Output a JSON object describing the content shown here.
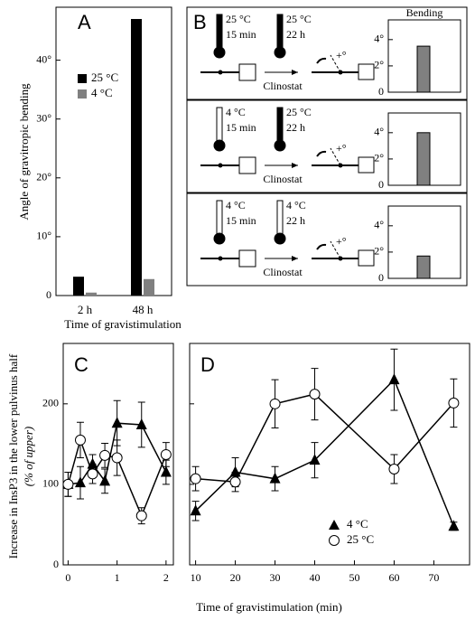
{
  "chart_data": [
    {
      "type": "bar",
      "label": "A",
      "ylabel": "Angle of gravitropic bending",
      "xlabel": "Time of gravistimulation",
      "categories": [
        "2 h",
        "48 h"
      ],
      "series": [
        {
          "name": "25 °C",
          "color": "#000000",
          "values": [
            3.2,
            47
          ]
        },
        {
          "name": "4 °C",
          "color": "#808080",
          "values": [
            0.5,
            2.8
          ]
        }
      ],
      "ylim": [
        0,
        49
      ],
      "yticks": [
        0,
        {
          "value": 10,
          "label": "10°"
        },
        {
          "value": 20,
          "label": "20°"
        },
        {
          "value": 30,
          "label": "30°"
        },
        {
          "value": 40,
          "label": "40°"
        }
      ]
    },
    {
      "type": "bar",
      "label": "B",
      "title": "Bending",
      "values": [
        3.5
      ],
      "color": "#808080",
      "annotations": [
        "25 °C",
        "15 min",
        "25 °C",
        "22 h",
        "Clinostat",
        "+°"
      ],
      "ylim": [
        0,
        5.5
      ],
      "yticks": [
        0,
        {
          "value": 2,
          "label": "2°"
        },
        {
          "value": 4,
          "label": "4°"
        }
      ]
    },
    {
      "type": "bar",
      "values": [
        4.0
      ],
      "color": "#808080",
      "annotations": [
        "4 °C",
        "15 min",
        "25 °C",
        "22 h",
        "Clinostat",
        "+°"
      ],
      "ylim": [
        0,
        5.5
      ],
      "yticks": [
        0,
        {
          "value": 2,
          "label": "2°"
        },
        {
          "value": 4,
          "label": "4°"
        }
      ]
    },
    {
      "type": "bar",
      "values": [
        1.7
      ],
      "color": "#808080",
      "annotations": [
        "4 °C",
        "15 min",
        "4 °C",
        "22 h",
        "Clinostat",
        "+°"
      ],
      "ylim": [
        0,
        5.5
      ],
      "yticks": [
        0,
        {
          "value": 2,
          "label": "2°"
        },
        {
          "value": 4,
          "label": "4°"
        }
      ]
    },
    {
      "type": "line",
      "label": "C",
      "ylabel": "Increase in InsP3 in the lower pulvinus half",
      "ylabel2": "(% of upper)",
      "x": [
        0,
        0.25,
        0.5,
        0.75,
        1,
        1.5,
        2
      ],
      "series": [
        {
          "marker": "triangle",
          "color": "#000000",
          "values": [
            100,
            102,
            125,
            104,
            176,
            174,
            115
          ],
          "errors": [
            15,
            20,
            12,
            15,
            28,
            28,
            15
          ]
        },
        {
          "marker": "circle",
          "color": "#000000",
          "values": [
            100,
            155,
            113,
            136,
            133,
            61,
            137
          ],
          "errors": [
            15,
            22,
            12,
            15,
            22,
            10,
            15
          ]
        }
      ],
      "xlim": [
        -0.1,
        2.15
      ],
      "xticks": [
        0,
        1,
        2
      ],
      "ylim": [
        0,
        275
      ],
      "yticks": [
        0,
        100,
        200
      ]
    },
    {
      "type": "line",
      "label": "D",
      "xlabel": "Time of gravistimulation (min)",
      "x": [
        10,
        20,
        30,
        40,
        60,
        75
      ],
      "series": [
        {
          "name": "4 °C",
          "marker": "triangle",
          "color": "#000000",
          "values": [
            67,
            115,
            107,
            130,
            230,
            48
          ],
          "errors": [
            12,
            18,
            15,
            22,
            38,
            5
          ]
        },
        {
          "name": "25 °C",
          "marker": "circle",
          "color": "#000000",
          "values": [
            107,
            103,
            200,
            212,
            119,
            201
          ],
          "errors": [
            15,
            12,
            30,
            32,
            18,
            30
          ]
        }
      ],
      "xlim": [
        8.5,
        79
      ],
      "xticks": [
        10,
        20,
        30,
        40,
        50,
        60,
        70
      ],
      "ylim": [
        0,
        275
      ]
    }
  ]
}
